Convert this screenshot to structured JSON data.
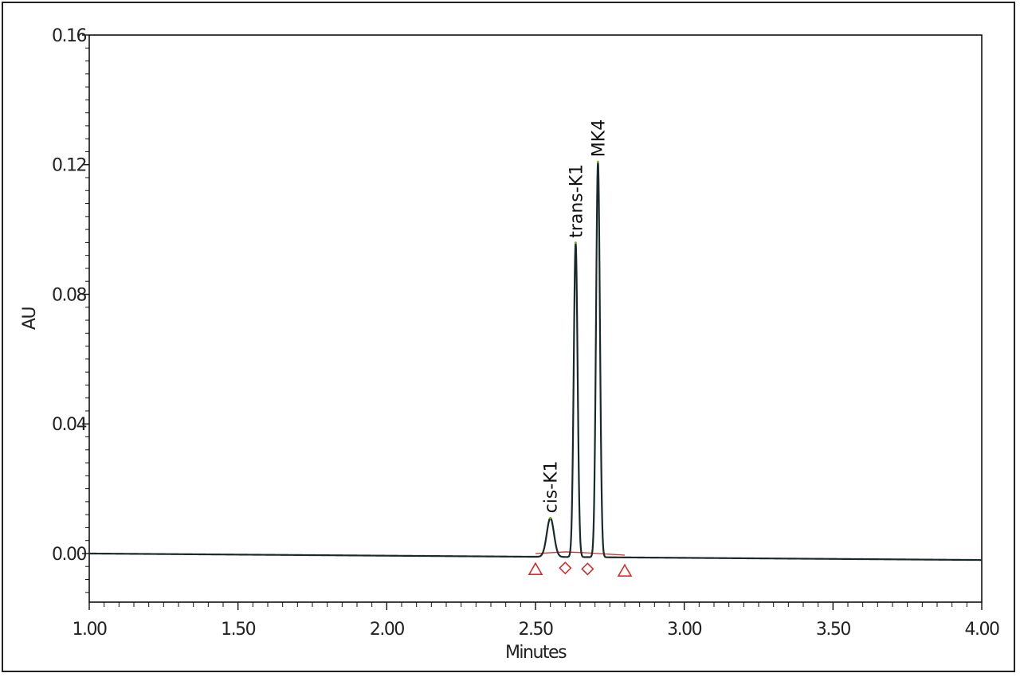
{
  "chart_data": {
    "type": "line",
    "title": "",
    "xlabel": "Minutes",
    "ylabel": "AU",
    "xlim": [
      1.0,
      4.0
    ],
    "ylim": [
      -0.015,
      0.16
    ],
    "x_ticks": [
      "1.00",
      "1.50",
      "2.00",
      "2.50",
      "3.00",
      "3.50",
      "4.00"
    ],
    "y_ticks": [
      "0.00",
      "0.04",
      "0.08",
      "0.12",
      "0.16"
    ],
    "x_tick_values": [
      1.0,
      1.5,
      2.0,
      2.5,
      3.0,
      3.5,
      4.0
    ],
    "y_tick_values": [
      0.0,
      0.04,
      0.08,
      0.12,
      0.16
    ],
    "baseline_drift": {
      "start": 0.0,
      "end": -0.002
    },
    "peaks": [
      {
        "name": "cis-K1",
        "rt": 2.55,
        "height": 0.012,
        "width": 0.012
      },
      {
        "name": "trans-K1",
        "rt": 2.635,
        "height": 0.097,
        "width": 0.0065
      },
      {
        "name": "MK4",
        "rt": 2.71,
        "height": 0.122,
        "width": 0.0065
      }
    ],
    "integration_markers": [
      {
        "shape": "triangle",
        "x": 2.5,
        "y": -0.003
      },
      {
        "shape": "diamond",
        "x": 2.6,
        "y": -0.0025
      },
      {
        "shape": "diamond",
        "x": 2.675,
        "y": -0.0028
      },
      {
        "shape": "triangle",
        "x": 2.8,
        "y": -0.0035
      }
    ],
    "colors": {
      "trace": "#1a2a2a",
      "baseline": "#d03030",
      "marker": "#d03030",
      "peak_tip": "#7ab030"
    },
    "grid": false,
    "legend": "none"
  }
}
